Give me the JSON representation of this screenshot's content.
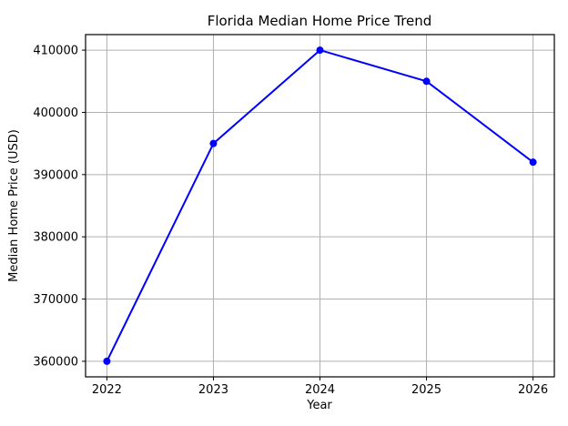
{
  "chart_data": {
    "type": "line",
    "title": "Florida Median Home Price Trend",
    "xlabel": "Year",
    "ylabel": "Median Home Price (USD)",
    "x": [
      2022,
      2023,
      2024,
      2025,
      2026
    ],
    "series": [
      {
        "name": "Median Home Price",
        "values": [
          360000,
          395000,
          410000,
          405000,
          392000
        ],
        "color": "#0000ff",
        "marker": "circle"
      }
    ],
    "xticks": [
      2022,
      2023,
      2024,
      2025,
      2026
    ],
    "yticks": [
      360000,
      370000,
      380000,
      390000,
      400000,
      410000
    ],
    "xlim": [
      2021.8,
      2026.2
    ],
    "ylim": [
      357500,
      412500
    ],
    "grid": true,
    "legend": "none",
    "colors": {
      "line": "#0000ff",
      "grid": "#b0b0b0",
      "spine": "#000000",
      "text": "#000000",
      "background": "#ffffff"
    }
  }
}
